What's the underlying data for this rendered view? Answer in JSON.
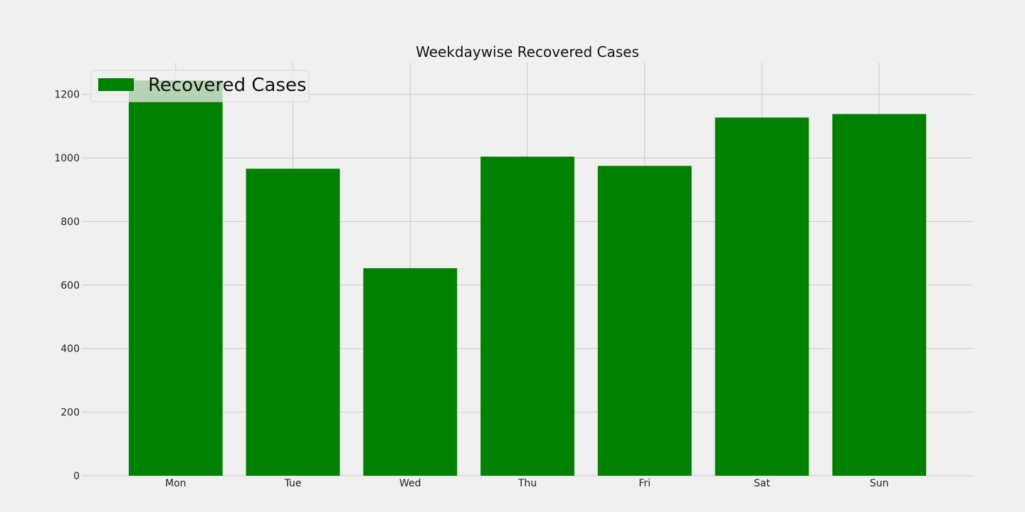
{
  "chart_data": {
    "type": "bar",
    "title": "Weekdaywise Recovered Cases",
    "xlabel": "",
    "ylabel": "",
    "categories": [
      "Mon",
      "Tue",
      "Wed",
      "Thu",
      "Fri",
      "Sat",
      "Sun"
    ],
    "series": [
      {
        "name": "Recovered Cases",
        "color": "#008000",
        "values": [
          1244,
          966,
          653,
          1004,
          975,
          1127,
          1138
        ]
      }
    ],
    "ylim": [
      0,
      1300
    ],
    "yticks": [
      0,
      200,
      400,
      600,
      800,
      1000,
      1200
    ],
    "grid": true,
    "legend_position": "top-left"
  }
}
